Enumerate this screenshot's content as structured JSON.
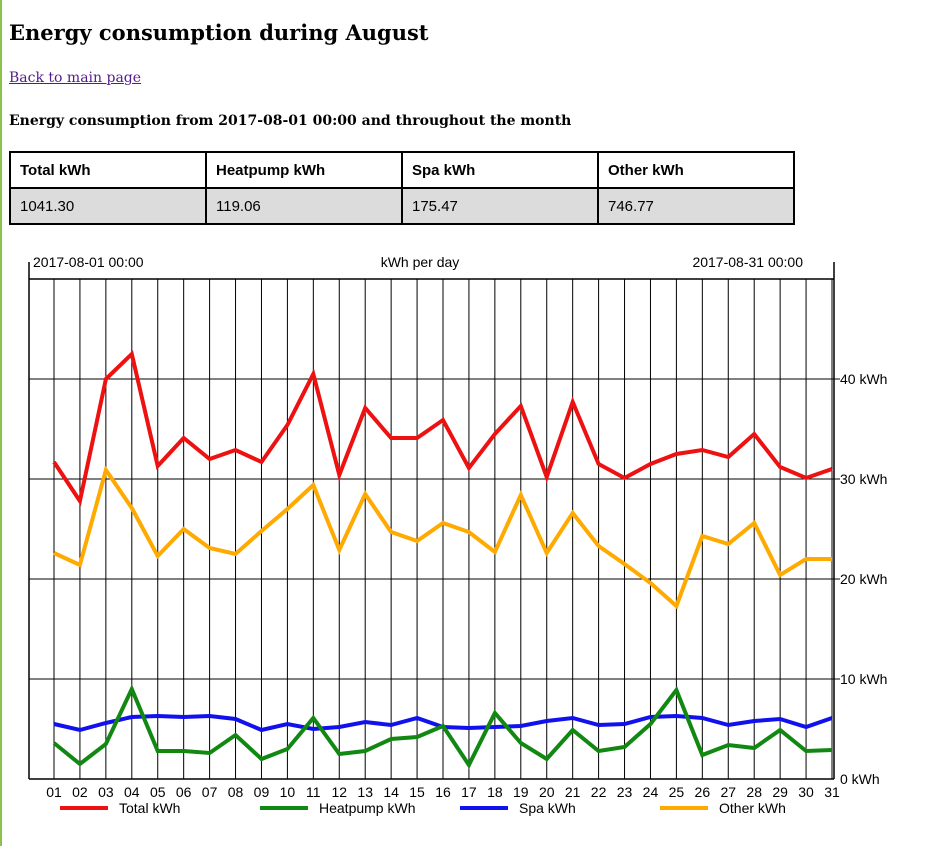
{
  "page": {
    "title": "Energy consumption during August",
    "back_link": "Back to main page",
    "subtitle": "Energy consumption from 2017-08-01 00:00 and throughout the month"
  },
  "summary": {
    "headers": [
      "Total kWh",
      "Heatpump kWh",
      "Spa kWh",
      "Other kWh"
    ],
    "values": [
      "1041.30",
      "119.06",
      "175.47",
      "746.77"
    ]
  },
  "chart_data": {
    "type": "line",
    "title": "kWh per day",
    "start_label": "2017-08-01 00:00",
    "end_label": "2017-08-31 00:00",
    "x": [
      "01",
      "02",
      "03",
      "04",
      "05",
      "06",
      "07",
      "08",
      "09",
      "10",
      "11",
      "12",
      "13",
      "14",
      "15",
      "16",
      "17",
      "18",
      "19",
      "20",
      "21",
      "22",
      "23",
      "24",
      "25",
      "26",
      "27",
      "28",
      "29",
      "30",
      "31"
    ],
    "y_ticks": [
      "0 kWh",
      "10 kWh",
      "20 kWh",
      "30 kWh",
      "40 kWh"
    ],
    "ylim": [
      0,
      50
    ],
    "grid": true,
    "legend_position": "bottom",
    "series": [
      {
        "name": "Total kWh",
        "color": "#ee1111",
        "values": [
          31.7,
          27.8,
          40.0,
          42.5,
          31.3,
          34.1,
          32.0,
          32.9,
          31.7,
          35.4,
          40.5,
          30.4,
          37.1,
          34.1,
          34.1,
          35.9,
          31.1,
          34.5,
          37.3,
          30.2,
          37.7,
          31.5,
          30.1,
          31.5,
          32.5,
          32.9,
          32.2,
          34.5,
          31.2,
          30.1,
          31.0
        ]
      },
      {
        "name": "Heatpump kWh",
        "color": "#118811",
        "values": [
          3.6,
          1.5,
          3.5,
          9.0,
          2.8,
          2.8,
          2.6,
          4.4,
          2.0,
          3.0,
          6.1,
          2.5,
          2.8,
          4.0,
          4.2,
          5.3,
          1.4,
          6.6,
          3.6,
          2.0,
          4.9,
          2.8,
          3.2,
          5.5,
          8.9,
          2.4,
          3.4,
          3.1,
          4.9,
          2.8,
          2.9
        ]
      },
      {
        "name": "Spa kWh",
        "color": "#1111ee",
        "values": [
          5.5,
          4.9,
          5.6,
          6.2,
          6.3,
          6.2,
          6.3,
          6.0,
          4.9,
          5.5,
          5.0,
          5.2,
          5.7,
          5.4,
          6.1,
          5.2,
          5.1,
          5.2,
          5.3,
          5.8,
          6.1,
          5.4,
          5.5,
          6.2,
          6.3,
          6.1,
          5.4,
          5.8,
          6.0,
          5.2,
          6.1
        ]
      },
      {
        "name": "Other kWh",
        "color": "#ffaa00",
        "values": [
          22.6,
          21.4,
          30.9,
          27.1,
          22.3,
          25.0,
          23.1,
          22.5,
          24.8,
          27.0,
          29.4,
          22.9,
          28.5,
          24.7,
          23.8,
          25.6,
          24.7,
          22.7,
          28.4,
          22.6,
          26.6,
          23.3,
          21.5,
          19.6,
          17.3,
          24.3,
          23.5,
          25.6,
          20.4,
          22.0,
          22.0
        ]
      }
    ]
  }
}
